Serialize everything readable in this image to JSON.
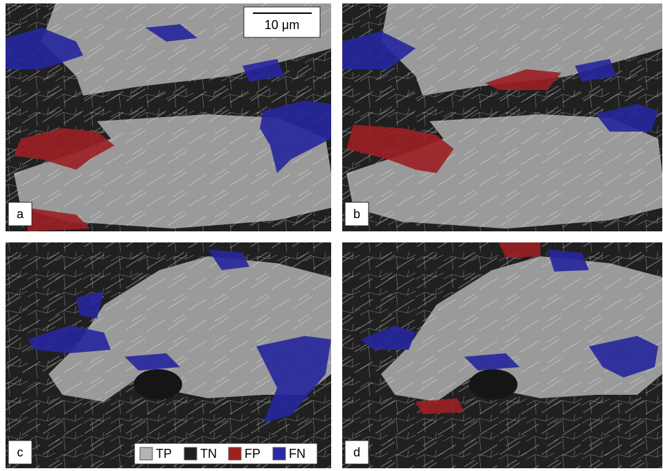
{
  "scale_bar": "10 μm",
  "panels": [
    {
      "label": "a"
    },
    {
      "label": "b"
    },
    {
      "label": "c"
    },
    {
      "label": "d"
    }
  ],
  "legend": [
    {
      "label": "TP",
      "color": "#b4b4b4"
    },
    {
      "label": "TN",
      "color": "#1e1e1e"
    },
    {
      "label": "FP",
      "color": "#a02020"
    },
    {
      "label": "FN",
      "color": "#2a2aa8"
    }
  ]
}
